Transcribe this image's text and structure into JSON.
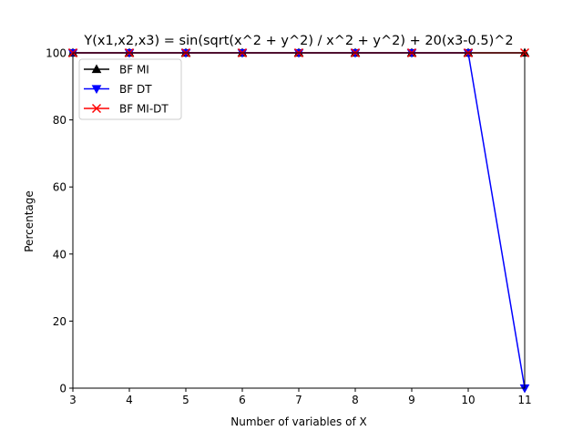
{
  "chart_data": {
    "type": "line",
    "title": "Y(x1,x2,x3) = sin(sqrt(x^2 + y^2) / x^2 + y^2) + 20(x3-0.5)^2",
    "xlabel": "Number of variables of X",
    "ylabel": "Percentage",
    "xlim": [
      3,
      11
    ],
    "ylim": [
      0,
      100
    ],
    "xticks": [
      3,
      4,
      5,
      6,
      7,
      8,
      9,
      10,
      11
    ],
    "yticks": [
      0,
      20,
      40,
      60,
      80,
      100
    ],
    "grid": false,
    "legend_position": "upper-left",
    "x": [
      3,
      4,
      5,
      6,
      7,
      8,
      9,
      10,
      11
    ],
    "series": [
      {
        "name": "BF MI",
        "color": "#000000",
        "marker": "triangle-up",
        "values": [
          100,
          100,
          100,
          100,
          100,
          100,
          100,
          100,
          100
        ]
      },
      {
        "name": "BF DT",
        "color": "#0000ff",
        "marker": "triangle-down",
        "values": [
          100,
          100,
          100,
          100,
          100,
          100,
          100,
          100,
          0
        ]
      },
      {
        "name": "BF MI-DT",
        "color": "#ff0000",
        "marker": "x",
        "values": [
          100,
          100,
          100,
          100,
          100,
          100,
          100,
          100,
          100
        ]
      }
    ]
  }
}
